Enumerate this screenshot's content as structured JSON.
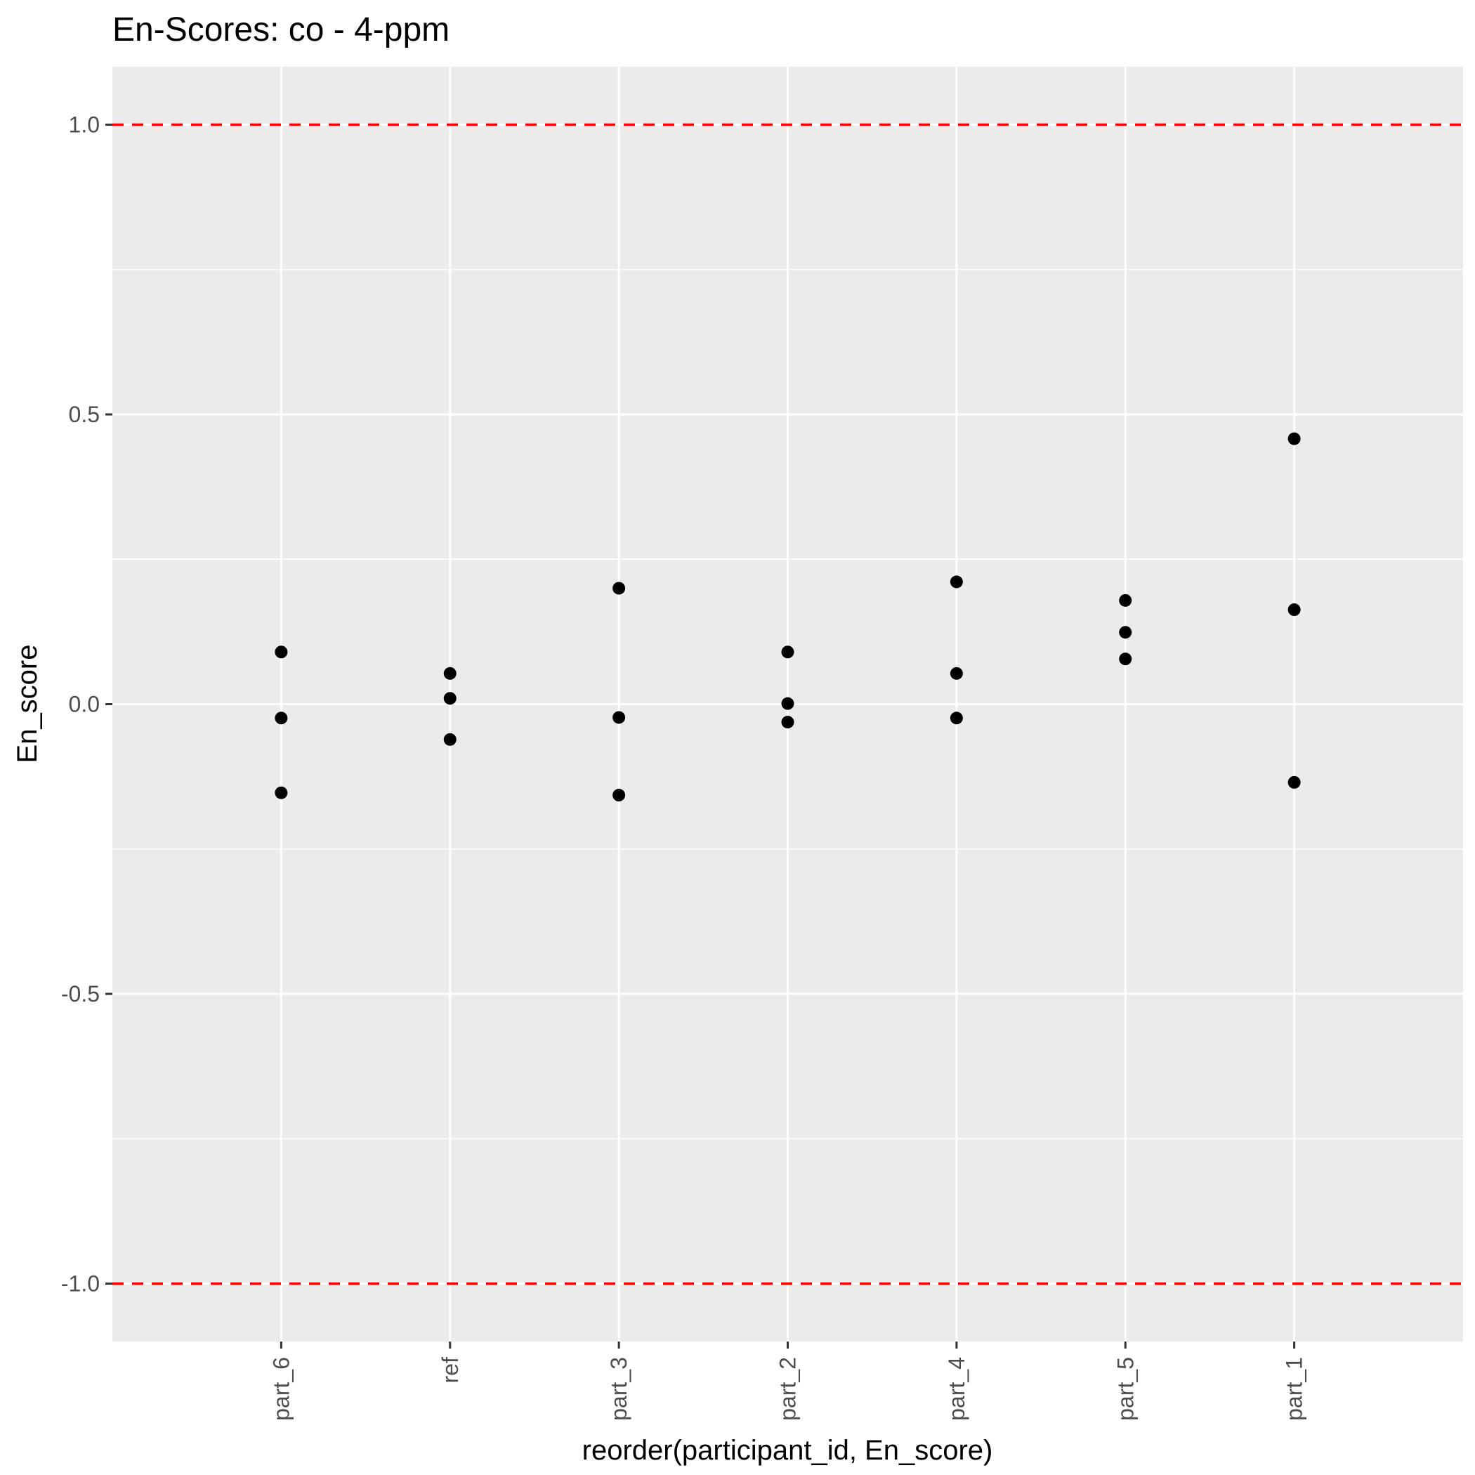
{
  "chart_data": {
    "type": "scatter",
    "title": "En-Scores: co - 4-ppm",
    "xlabel": "reorder(participant_id, En_score)",
    "ylabel": "En_score",
    "ylim": [
      -1.1,
      1.1
    ],
    "yticks": [
      {
        "value": 1.0,
        "label": "1.0"
      },
      {
        "value": 0.5,
        "label": "0.5"
      },
      {
        "value": 0.0,
        "label": "0.0"
      },
      {
        "value": -0.5,
        "label": "-0.5"
      },
      {
        "value": -1.0,
        "label": "-1.0"
      }
    ],
    "grid": true,
    "categories": [
      "part_6",
      "ref",
      "part_3",
      "part_2",
      "part_4",
      "part_5",
      "part_1"
    ],
    "points": [
      {
        "category": "part_6",
        "y": 0.09
      },
      {
        "category": "part_6",
        "y": -0.024
      },
      {
        "category": "part_6",
        "y": -0.153
      },
      {
        "category": "ref",
        "y": 0.053
      },
      {
        "category": "ref",
        "y": 0.01
      },
      {
        "category": "ref",
        "y": -0.061
      },
      {
        "category": "part_3",
        "y": 0.2
      },
      {
        "category": "part_3",
        "y": -0.023
      },
      {
        "category": "part_3",
        "y": -0.157
      },
      {
        "category": "part_2",
        "y": 0.09
      },
      {
        "category": "part_2",
        "y": 0.001
      },
      {
        "category": "part_2",
        "y": -0.031
      },
      {
        "category": "part_4",
        "y": 0.211
      },
      {
        "category": "part_4",
        "y": 0.053
      },
      {
        "category": "part_4",
        "y": -0.024
      },
      {
        "category": "part_5",
        "y": 0.179
      },
      {
        "category": "part_5",
        "y": 0.124
      },
      {
        "category": "part_5",
        "y": 0.078
      },
      {
        "category": "part_1",
        "y": 0.458
      },
      {
        "category": "part_1",
        "y": 0.163
      },
      {
        "category": "part_1",
        "y": -0.135
      }
    ],
    "reference_lines": [
      {
        "y": 1.0,
        "color": "#ff0000",
        "style": "dashed"
      },
      {
        "y": -1.0,
        "color": "#ff0000",
        "style": "dashed"
      }
    ],
    "colors": {
      "panel": "#ebebeb",
      "grid": "#ffffff",
      "point": "#000000",
      "reference": "#ff0000"
    }
  }
}
